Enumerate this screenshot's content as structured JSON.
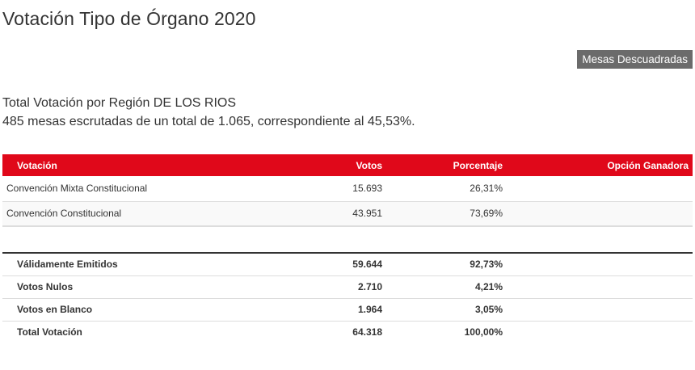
{
  "page_title": "Votación Tipo de Órgano 2020",
  "mesas_button_label": "Mesas Descuadradas",
  "summary": {
    "line1": "Total Votación por Región DE LOS RIOS",
    "line2": "485 mesas escrutadas de un total de 1.065, correspondiente al 45,53%."
  },
  "table": {
    "headers": {
      "votacion": "Votación",
      "votos": "Votos",
      "porcentaje": "Porcentaje",
      "opcion_ganadora": "Opción Ganadora"
    },
    "rows": [
      {
        "votacion": "Convención Mixta Constitucional",
        "votos": "15.693",
        "porcentaje": "26,31%",
        "opcion_ganadora": ""
      },
      {
        "votacion": "Convención Constitucional",
        "votos": "43.951",
        "porcentaje": "73,69%",
        "opcion_ganadora": ""
      }
    ]
  },
  "totals": [
    {
      "label": "Válidamente Emitidos",
      "votos": "59.644",
      "porcentaje": "92,73%"
    },
    {
      "label": "Votos Nulos",
      "votos": "2.710",
      "porcentaje": "4,21%"
    },
    {
      "label": "Votos en Blanco",
      "votos": "1.964",
      "porcentaje": "3,05%"
    },
    {
      "label": "Total Votación",
      "votos": "64.318",
      "porcentaje": "100,00%"
    }
  ],
  "colors": {
    "header_red": "#e0081a",
    "button_gray": "#6b6b6b",
    "text": "#333333"
  }
}
